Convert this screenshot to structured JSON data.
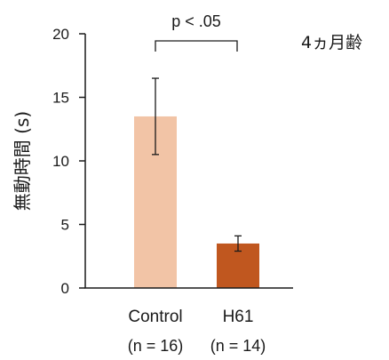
{
  "chart_data": {
    "type": "bar",
    "title": "",
    "ylabel": "無動時間 (s)",
    "xlabel": "",
    "ylim": [
      0,
      20
    ],
    "yticks": [
      0,
      5,
      10,
      15,
      20
    ],
    "categories": [
      "Control",
      "H61"
    ],
    "sample_sizes": [
      "(n = 16)",
      "(n = 14)"
    ],
    "values": [
      13.5,
      3.5
    ],
    "errors": [
      3.0,
      0.6
    ],
    "colors": [
      "#f2c4a6",
      "#c0571f"
    ],
    "significance": {
      "label": "p < .05",
      "between": [
        "Control",
        "H61"
      ]
    },
    "annotation": "4ヵ月齢",
    "grid": false,
    "legend": "none"
  }
}
